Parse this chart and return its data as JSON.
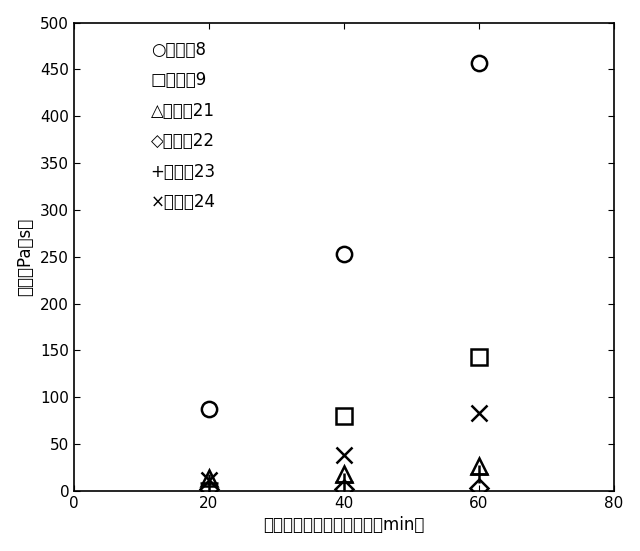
{
  "xlabel": "シャーレ展開後経過時間（min）",
  "ylabel": "粘度（Pa・s）",
  "xlim": [
    0,
    80
  ],
  "ylim": [
    0,
    500
  ],
  "xticks": [
    0,
    20,
    40,
    60,
    80
  ],
  "yticks": [
    0,
    50,
    100,
    150,
    200,
    250,
    300,
    350,
    400,
    450,
    500
  ],
  "series": [
    {
      "label": "○実施例8",
      "x": [
        20,
        40,
        60
      ],
      "y": [
        88,
        253,
        457
      ],
      "marker": "o",
      "markersize": 11,
      "fillstyle": "none"
    },
    {
      "label": "□実施例9",
      "x": [
        40,
        60
      ],
      "y": [
        80,
        143
      ],
      "marker": "s",
      "markersize": 11,
      "fillstyle": "none"
    },
    {
      "label": "△比較例21",
      "x": [
        20,
        40,
        60
      ],
      "y": [
        14,
        18,
        27
      ],
      "marker": "^",
      "markersize": 11,
      "fillstyle": "none"
    },
    {
      "label": "◇比較例22",
      "x": [
        20,
        40,
        60
      ],
      "y": [
        2,
        2,
        3
      ],
      "marker": "D",
      "markersize": 9,
      "fillstyle": "none"
    },
    {
      "label": "+比較例23",
      "x": [
        20,
        40,
        60
      ],
      "y": [
        8,
        10,
        18
      ],
      "marker": "+",
      "markersize": 13,
      "fillstyle": "none"
    },
    {
      "label": "×比較例24",
      "x": [
        20,
        40,
        60
      ],
      "y": [
        12,
        38,
        83
      ],
      "marker": "x",
      "markersize": 11,
      "fillstyle": "none"
    }
  ],
  "background_color": "#ffffff",
  "figsize": [
    6.4,
    5.51
  ],
  "dpi": 100
}
